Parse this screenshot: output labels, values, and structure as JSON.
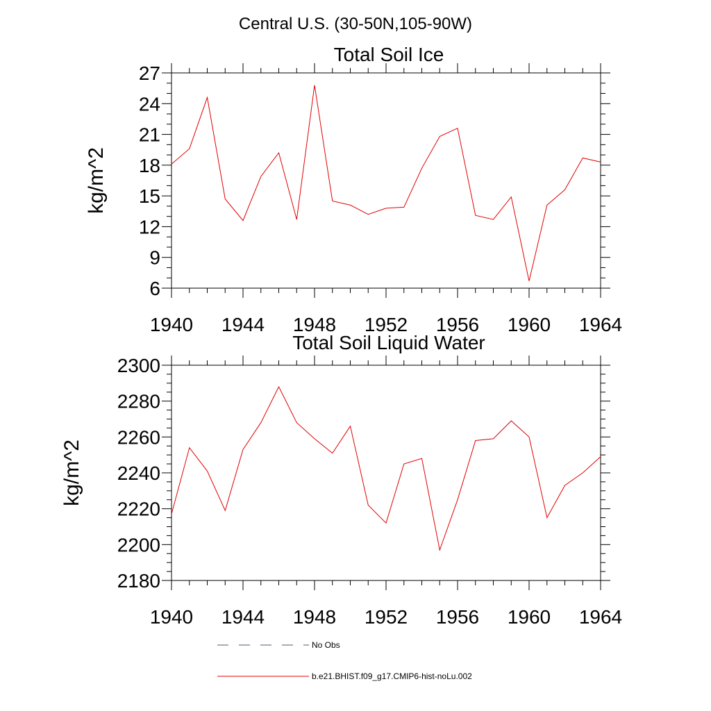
{
  "figure_title": "Central U.S. (30-50N,105-90W)",
  "chart_data": [
    {
      "type": "line",
      "title": "Total Soil Ice",
      "xlabel": "",
      "ylabel": "kg/m^2",
      "xlim": [
        1940,
        1964
      ],
      "ylim": [
        6,
        27
      ],
      "x_ticks": [
        1940,
        1944,
        1948,
        1952,
        1956,
        1960,
        1964
      ],
      "y_ticks": [
        6,
        9,
        12,
        15,
        18,
        21,
        24,
        27
      ],
      "grid": false,
      "series": [
        {
          "name": "b.e21.BHIST.f09_g17.CMIP6-hist-noLu.002",
          "color": "#e00000",
          "x": [
            1940,
            1941,
            1942,
            1943,
            1944,
            1945,
            1946,
            1947,
            1948,
            1949,
            1950,
            1951,
            1952,
            1953,
            1954,
            1955,
            1956,
            1957,
            1958,
            1959,
            1960,
            1961,
            1962,
            1963,
            1964
          ],
          "y": [
            18.1,
            19.6,
            24.6,
            14.7,
            12.6,
            16.9,
            19.2,
            12.7,
            25.8,
            14.5,
            14.1,
            13.2,
            13.8,
            13.9,
            17.7,
            20.8,
            21.6,
            13.1,
            12.7,
            14.9,
            6.7,
            14.1,
            15.6,
            18.7,
            18.3
          ]
        }
      ]
    },
    {
      "type": "line",
      "title": "Total Soil Liquid Water",
      "xlabel": "",
      "ylabel": "kg/m^2",
      "xlim": [
        1940,
        1964
      ],
      "ylim": [
        2180,
        2300
      ],
      "x_ticks": [
        1940,
        1944,
        1948,
        1952,
        1956,
        1960,
        1964
      ],
      "y_ticks": [
        2180,
        2200,
        2220,
        2240,
        2260,
        2280,
        2300
      ],
      "grid": false,
      "series": [
        {
          "name": "b.e21.BHIST.f09_g17.CMIP6-hist-noLu.002",
          "color": "#e00000",
          "x": [
            1940,
            1941,
            1942,
            1943,
            1944,
            1945,
            1946,
            1947,
            1948,
            1949,
            1950,
            1951,
            1952,
            1953,
            1954,
            1955,
            1956,
            1957,
            1958,
            1959,
            1960,
            1961,
            1962,
            1963,
            1964
          ],
          "y": [
            2217,
            2254,
            2241,
            2219,
            2253,
            2268,
            2288,
            2268,
            2259,
            2251,
            2266,
            2222,
            2212,
            2245,
            2248,
            2197,
            2225,
            2258,
            2259,
            2269,
            2260,
            2215,
            2233,
            2240,
            2249
          ]
        }
      ]
    }
  ],
  "legend": {
    "placement": "bottom",
    "items": [
      {
        "label": "No Obs",
        "style": "dashed",
        "color": "#555577"
      },
      {
        "label": "b.e21.BHIST.f09_g17.CMIP6-hist-noLu.002",
        "style": "solid",
        "color": "#e00000"
      }
    ]
  }
}
